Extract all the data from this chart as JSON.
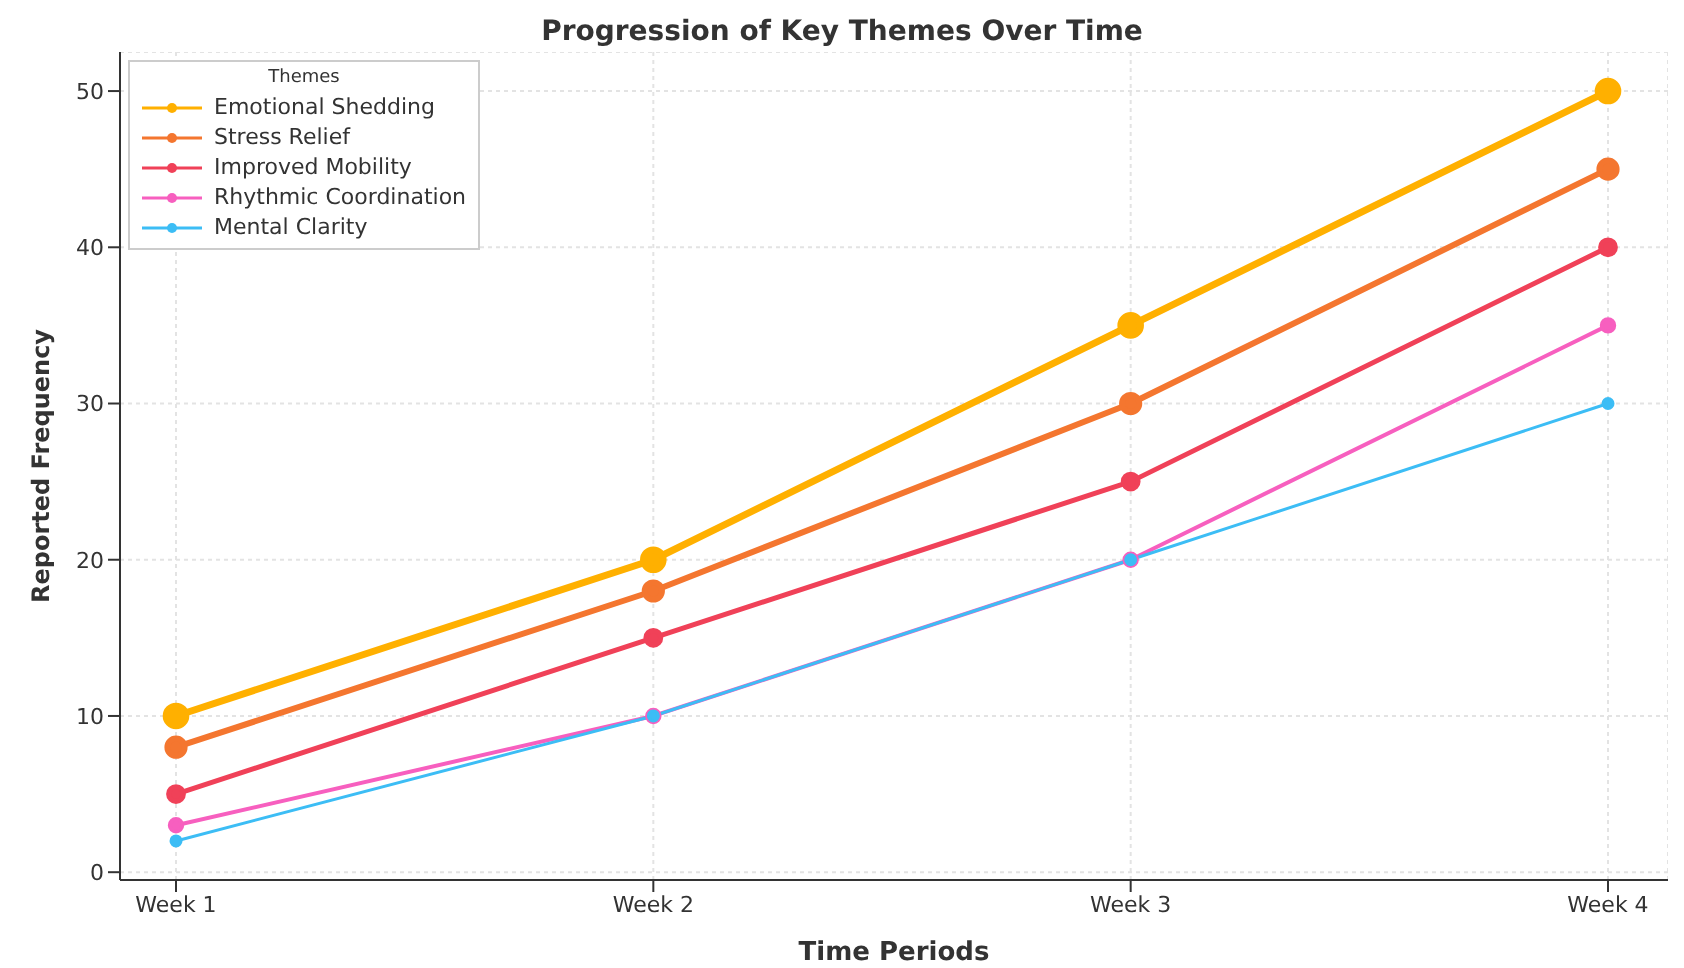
{
  "chart_data": {
    "type": "line",
    "title": "Progression of Key Themes Over Time",
    "xlabel": "Time Periods",
    "ylabel": "Reported Frequency",
    "legend_title": "Themes",
    "categories": [
      "Week 1",
      "Week 2",
      "Week 3",
      "Week 4"
    ],
    "series": [
      {
        "name": "Emotional Shedding",
        "color": "#ffb000",
        "values": [
          10,
          20,
          35,
          50
        ]
      },
      {
        "name": "Stress Relief",
        "color": "#f4762f",
        "values": [
          8,
          18,
          30,
          45
        ]
      },
      {
        "name": "Improved Mobility",
        "color": "#f04158",
        "values": [
          5,
          15,
          25,
          40
        ]
      },
      {
        "name": "Rhythmic Coordination",
        "color": "#f75fbf",
        "values": [
          3,
          10,
          20,
          35
        ]
      },
      {
        "name": "Mental Clarity",
        "color": "#3cbdf5",
        "values": [
          2,
          10,
          20,
          30
        ]
      }
    ],
    "ylim": [
      -0.5,
      52.5
    ],
    "yticks": [
      0,
      10,
      20,
      30,
      40,
      50
    ],
    "grid": true,
    "legend": "top left",
    "marker": "circle",
    "line_style": "solid"
  }
}
